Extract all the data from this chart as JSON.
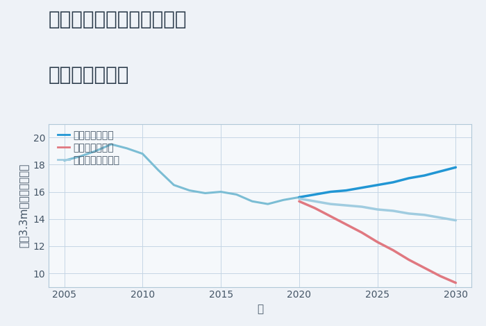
{
  "title_line1": "三重県松阪市飯高町富永の",
  "title_line2": "土地の価格推移",
  "xlabel": "年",
  "ylabel": "平（3.3m）単価（万円）",
  "background_color": "#eef2f7",
  "plot_bg_color": "#f5f8fb",
  "historical_years": [
    2005,
    2006,
    2007,
    2008,
    2009,
    2010,
    2011,
    2012,
    2013,
    2014,
    2015,
    2016,
    2017,
    2018,
    2019,
    2020
  ],
  "historical_values": [
    18.3,
    18.6,
    19.0,
    19.5,
    19.2,
    18.8,
    17.6,
    16.5,
    16.1,
    15.9,
    16.0,
    15.8,
    15.3,
    15.1,
    15.4,
    15.6
  ],
  "good_years": [
    2020,
    2021,
    2022,
    2023,
    2024,
    2025,
    2026,
    2027,
    2028,
    2029,
    2030
  ],
  "good_values": [
    15.6,
    15.8,
    16.0,
    16.1,
    16.3,
    16.5,
    16.7,
    17.0,
    17.2,
    17.5,
    17.8
  ],
  "bad_years": [
    2020,
    2021,
    2022,
    2023,
    2024,
    2025,
    2026,
    2027,
    2028,
    2029,
    2030
  ],
  "bad_values": [
    15.3,
    14.8,
    14.2,
    13.6,
    13.0,
    12.3,
    11.7,
    11.0,
    10.4,
    9.8,
    9.3
  ],
  "normal_years": [
    2020,
    2021,
    2022,
    2023,
    2024,
    2025,
    2026,
    2027,
    2028,
    2029,
    2030
  ],
  "normal_values": [
    15.5,
    15.3,
    15.1,
    15.0,
    14.9,
    14.7,
    14.6,
    14.4,
    14.3,
    14.1,
    13.9
  ],
  "color_historical": "#7bbdd4",
  "color_good": "#2196d4",
  "color_bad": "#e07880",
  "color_normal": "#a0cce0",
  "legend_labels": [
    "グッドシナリオ",
    "バッドシナリオ",
    "ノーマルシナリオ"
  ],
  "ylim": [
    9,
    21
  ],
  "xlim": [
    2004.0,
    2031.0
  ],
  "yticks": [
    10,
    12,
    14,
    16,
    18,
    20
  ],
  "xticks": [
    2005,
    2010,
    2015,
    2020,
    2025,
    2030
  ],
  "title_fontsize": 20,
  "axis_label_fontsize": 11,
  "tick_fontsize": 10,
  "legend_fontsize": 10,
  "linewidth_hist": 2.2,
  "linewidth_future": 2.5
}
